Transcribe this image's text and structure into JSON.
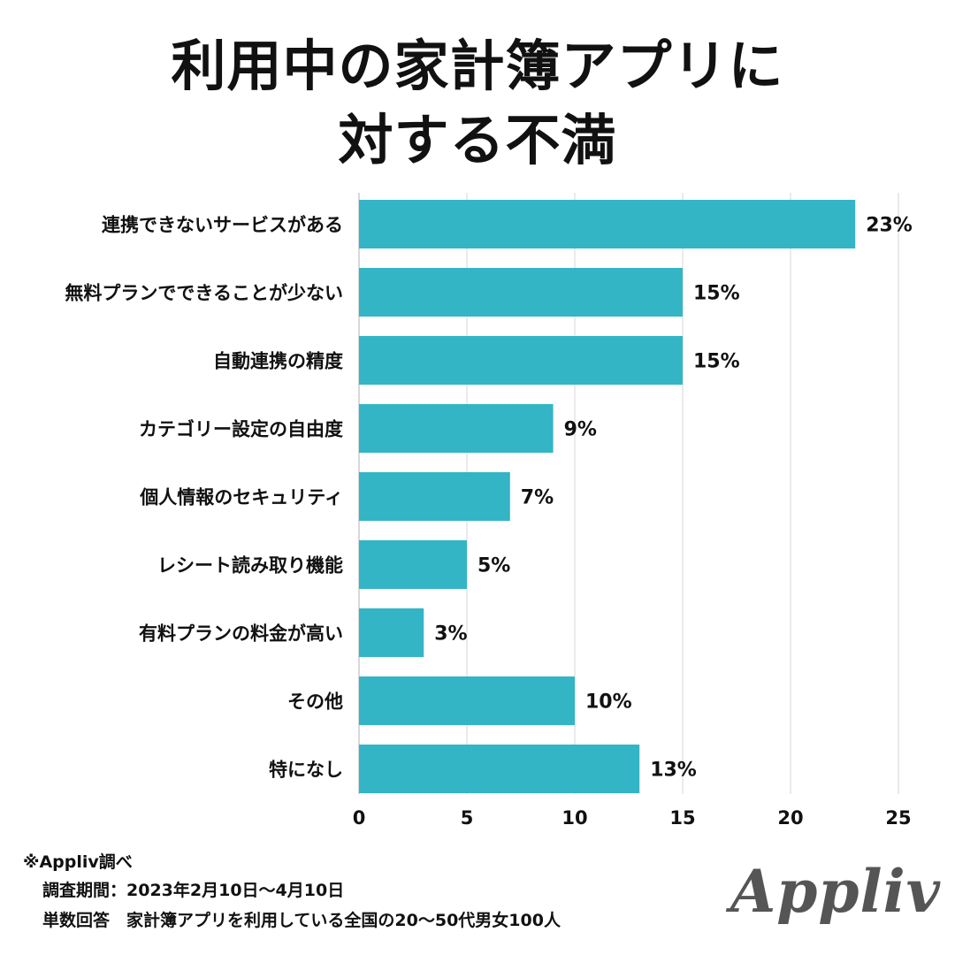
{
  "title": {
    "line1": "利用中の家計簿アプリに",
    "line2": "対する不満"
  },
  "colors": {
    "bar": "#33b5c6",
    "grid": "#e3e3e3",
    "axis": "#cccccc",
    "text": "#111111",
    "logo": "#555555"
  },
  "chart_data": {
    "type": "bar",
    "orientation": "horizontal",
    "categories": [
      "連携できないサービスがある",
      "無料プランでできることが少ない",
      "自動連携の精度",
      "カテゴリー設定の自由度",
      "個人情報のセキュリティ",
      "レシート読み取り機能",
      "有料プランの料金が高い",
      "その他",
      "特になし"
    ],
    "values": [
      23,
      15,
      15,
      9,
      7,
      5,
      3,
      10,
      13
    ],
    "value_labels": [
      "23%",
      "15%",
      "15%",
      "9%",
      "7%",
      "5%",
      "3%",
      "10%",
      "13%"
    ],
    "xlim": [
      0,
      25
    ],
    "x_ticks": [
      0,
      5,
      10,
      15,
      20,
      25
    ],
    "x_tick_labels": [
      "0",
      "5",
      "10",
      "15",
      "20",
      "25"
    ],
    "grid": true,
    "legend": "none"
  },
  "footer": {
    "source": "※Appliv調べ",
    "period": "調査期間：2023年2月10日～4月10日",
    "target": "単数回答　家計簿アプリを利用している全国の20～50代男女100人"
  },
  "logo": {
    "text": "Appliv"
  }
}
